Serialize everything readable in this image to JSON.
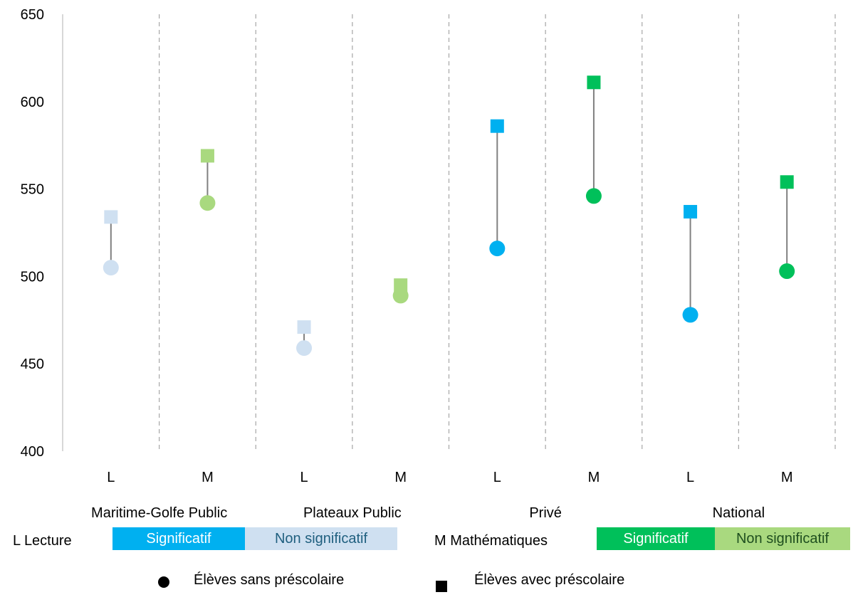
{
  "chart_data": {
    "type": "scatter",
    "title": "",
    "xlabel": "",
    "ylabel": "",
    "ylim": [
      400,
      650
    ],
    "yticks": [
      400,
      450,
      500,
      550,
      600,
      650
    ],
    "groups": [
      "Maritime-Golfe Public",
      "Plateaux Public",
      "Privé",
      "National"
    ],
    "categories": [
      "L",
      "M",
      "L",
      "M",
      "L",
      "M",
      "L",
      "M"
    ],
    "series": [
      {
        "name": "Élèves sans préscolaire",
        "marker": "circle",
        "values": [
          505,
          542,
          459,
          489,
          516,
          546,
          478,
          503
        ]
      },
      {
        "name": "Élèves avec préscolaire",
        "marker": "square",
        "values": [
          534,
          569,
          471,
          495,
          586,
          611,
          537,
          554
        ]
      }
    ],
    "significance": [
      "Non significatif",
      "Non significatif",
      "Non significatif",
      "Non significatif",
      "Significatif",
      "Significatif",
      "Significatif",
      "Significatif"
    ],
    "colors": {
      "lecture_significatif": "#00B0F0",
      "lecture_non_significatif": "#CFE0F1",
      "math_significatif": "#00C05A",
      "math_non_significatif": "#A9D97F",
      "connector": "#808080",
      "grid_divider": "#A6A6A6"
    },
    "legend": {
      "lecture_label": "L Lecture",
      "math_label": "M Mathématiques",
      "significatif": "Significatif",
      "non_significatif": "Non significatif",
      "sans_label": "Élèves sans préscolaire",
      "avec_label": "Élèves avec préscolaire"
    }
  }
}
